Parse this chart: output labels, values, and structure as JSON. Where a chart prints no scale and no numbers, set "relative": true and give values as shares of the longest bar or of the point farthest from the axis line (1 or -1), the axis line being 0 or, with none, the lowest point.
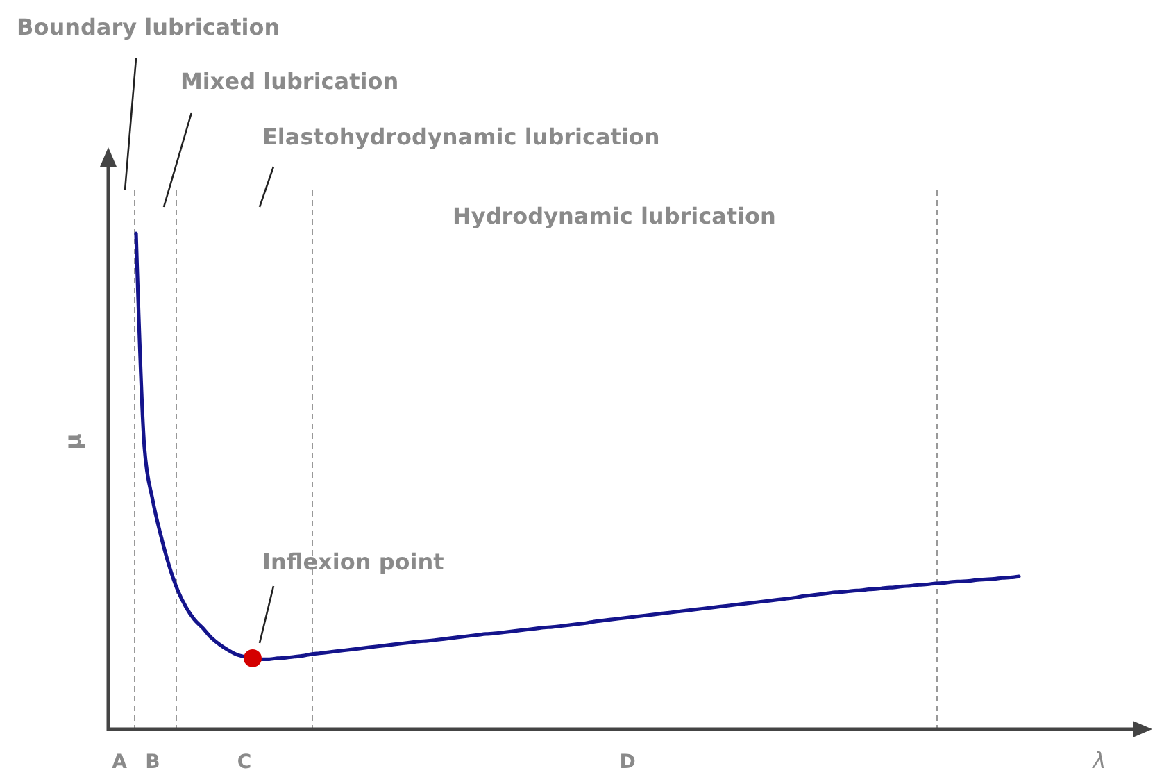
{
  "chart_data": {
    "type": "line",
    "relative": true,
    "xlabel": "λ",
    "ylabel": "μ",
    "tick_labels": "x",
    "categories": [
      "A",
      null,
      null,
      null,
      "B",
      null,
      null,
      null,
      null,
      null,
      null,
      null,
      null,
      null,
      null,
      "C",
      null,
      null,
      null,
      null,
      null,
      null,
      null,
      null,
      null,
      null,
      null,
      null,
      null,
      null,
      null,
      null,
      null,
      null,
      null,
      null,
      null,
      null,
      null,
      null,
      null,
      null,
      null,
      null,
      null,
      null,
      null,
      null,
      null,
      null,
      null,
      null,
      null,
      null,
      null,
      null,
      null,
      null,
      null,
      null,
      null,
      "D",
      null,
      null,
      null,
      null,
      null,
      null,
      null,
      null,
      null,
      null,
      null,
      null,
      null,
      null,
      null,
      null,
      null,
      null,
      null,
      null,
      null,
      null,
      null,
      null,
      null,
      null,
      null,
      null,
      null,
      null,
      null,
      null,
      null,
      null,
      null,
      null,
      null,
      null,
      null,
      null,
      null,
      null,
      null,
      null,
      null,
      null,
      null
    ],
    "series": [
      {
        "color": "#14148c",
        "line_style": "solid",
        "marker": "none",
        "values": [
          null,
          null,
          1.0,
          0.569,
          0.462,
          0.389,
          0.328,
          0.28,
          0.246,
          0.221,
          0.204,
          0.185,
          0.171,
          0.16,
          0.151,
          0.146,
          0.143,
          0.141,
          0.141,
          0.143,
          0.144,
          0.146,
          0.148,
          0.151,
          0.153,
          0.155,
          0.157,
          0.159,
          0.161,
          0.163,
          0.165,
          0.167,
          0.169,
          0.171,
          0.173,
          0.175,
          0.177,
          0.178,
          0.18,
          0.182,
          0.184,
          0.186,
          0.188,
          0.19,
          0.192,
          0.193,
          0.195,
          0.197,
          0.199,
          0.201,
          0.203,
          0.205,
          0.206,
          0.208,
          0.21,
          0.212,
          0.214,
          0.217,
          0.219,
          0.221,
          0.223,
          0.225,
          0.227,
          0.229,
          0.231,
          0.233,
          0.235,
          0.237,
          0.239,
          0.241,
          0.243,
          0.245,
          0.247,
          0.249,
          0.251,
          0.253,
          0.255,
          0.257,
          0.259,
          0.261,
          0.263,
          0.265,
          0.268,
          0.27,
          0.272,
          0.274,
          0.276,
          0.277,
          0.279,
          0.28,
          0.282,
          0.283,
          0.285,
          0.286,
          0.288,
          0.289,
          0.291,
          0.292,
          0.294,
          0.295,
          0.297,
          0.298,
          0.299,
          0.301,
          0.302,
          0.303,
          0.305,
          0.306,
          0.308
        ]
      },
      {
        "type": "scatter",
        "color": "#d40000",
        "marker": "circle",
        "values": [
          null,
          null,
          null,
          null,
          null,
          null,
          null,
          null,
          null,
          null,
          null,
          null,
          null,
          null,
          null,
          null,
          0.143,
          null,
          null,
          null,
          null,
          null,
          null,
          null,
          null,
          null,
          null,
          null,
          null,
          null,
          null,
          null,
          null,
          null,
          null,
          null,
          null,
          null,
          null,
          null,
          null,
          null,
          null,
          null,
          null,
          null,
          null,
          null,
          null,
          null,
          null,
          null,
          null,
          null,
          null,
          null,
          null,
          null,
          null,
          null,
          null,
          null,
          null,
          null,
          null,
          null,
          null,
          null,
          null,
          null,
          null,
          null,
          null,
          null,
          null,
          null,
          null,
          null,
          null,
          null,
          null,
          null,
          null,
          null,
          null,
          null,
          null,
          null,
          null,
          null,
          null,
          null,
          null,
          null,
          null,
          null,
          null,
          null,
          null,
          null,
          null,
          null,
          null,
          null,
          null,
          null,
          null,
          null,
          null
        ]
      }
    ],
    "annotations": [
      "Boundary lubrication",
      "Mixed lubrication",
      "Elastohydrodynamic lubrication",
      "Hydrodynamic lubrication",
      "Inflexion point"
    ]
  }
}
